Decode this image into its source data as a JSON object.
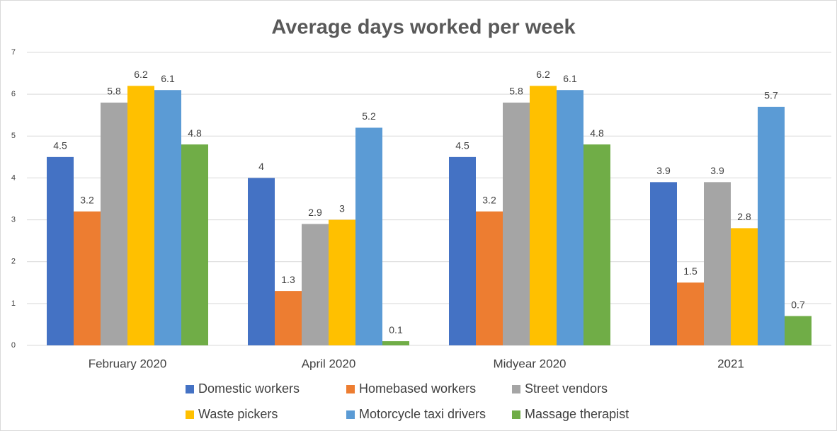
{
  "chart_data": {
    "type": "bar",
    "title": "Average days worked per week",
    "categories": [
      "February 2020",
      "April 2020",
      "Midyear 2020",
      "2021"
    ],
    "series": [
      {
        "name": "Domestic workers",
        "color": "#4472c4",
        "values": [
          4.5,
          4,
          4.5,
          3.9
        ]
      },
      {
        "name": "Homebased workers",
        "color": "#ed7d31",
        "values": [
          3.2,
          1.3,
          3.2,
          1.5
        ]
      },
      {
        "name": "Street vendors",
        "color": "#a5a5a5",
        "values": [
          5.8,
          2.9,
          5.8,
          3.9
        ]
      },
      {
        "name": "Waste pickers",
        "color": "#ffc000",
        "values": [
          6.2,
          3,
          6.2,
          2.8
        ]
      },
      {
        "name": "Motorcycle taxi drivers",
        "color": "#5b9bd5",
        "values": [
          6.1,
          5.2,
          6.1,
          5.7
        ]
      },
      {
        "name": "Massage therapist",
        "color": "#70ad47",
        "values": [
          4.8,
          0.1,
          4.8,
          0.7
        ]
      }
    ],
    "ylim": [
      0,
      7
    ],
    "yticks": [
      0,
      1,
      2,
      3,
      4,
      5,
      6,
      7
    ],
    "grid": true,
    "legend": "bottom"
  }
}
